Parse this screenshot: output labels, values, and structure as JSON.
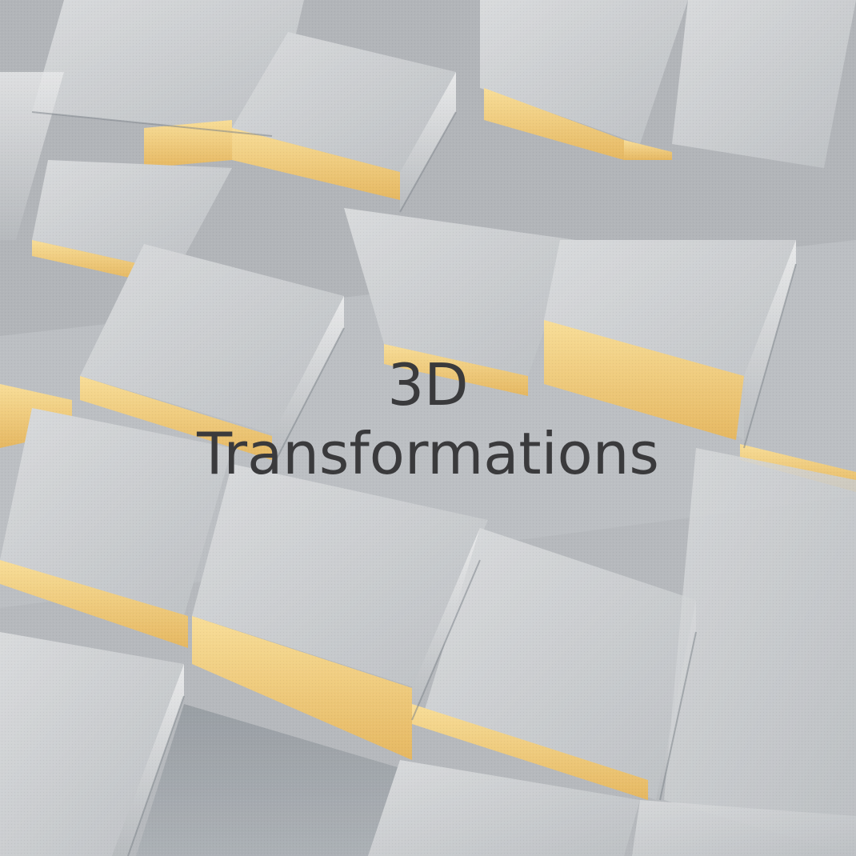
{
  "title": {
    "line1": "3D",
    "line2": "Transformations"
  },
  "colors": {
    "background": "#b9bcbf",
    "tile_top": "#c9cbcd",
    "tile_side_light": "#dadcde",
    "tile_side_dark": "#8f959b",
    "accent_edge": "#f2c66a",
    "text": "#3a3a3c"
  }
}
